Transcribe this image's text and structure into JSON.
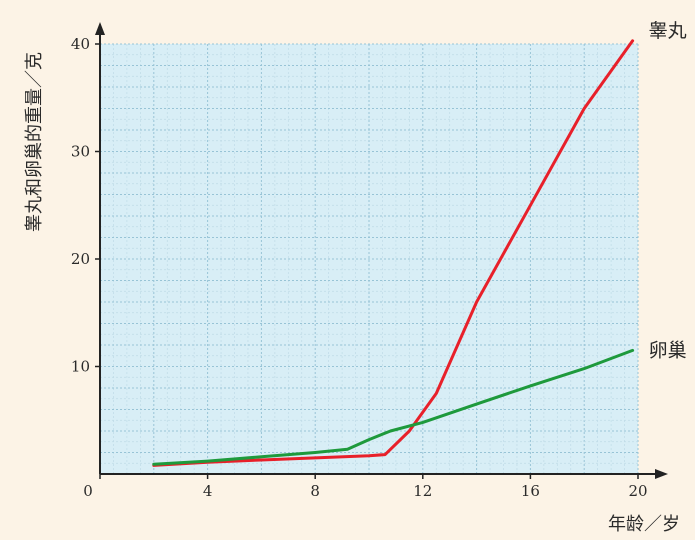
{
  "chart_data": {
    "type": "line",
    "xlabel": "年龄／岁",
    "ylabel": "睾丸和卵巢的重量／克",
    "xlim": [
      0,
      20
    ],
    "ylim": [
      0,
      40
    ],
    "x_ticks": [
      {
        "value": 0,
        "label": "0"
      },
      {
        "value": 4,
        "label": "4"
      },
      {
        "value": 8,
        "label": "8"
      },
      {
        "value": 12,
        "label": "12"
      },
      {
        "value": 16,
        "label": "16"
      },
      {
        "value": 20,
        "label": "20"
      }
    ],
    "y_ticks": [
      {
        "value": 10,
        "label": "10"
      },
      {
        "value": 20,
        "label": "20"
      },
      {
        "value": 30,
        "label": "30"
      },
      {
        "value": 40,
        "label": "40"
      }
    ],
    "grid": true,
    "plot_background": "#d8eef6",
    "series": [
      {
        "name": "睾丸",
        "color": "#e8202a",
        "x": [
          2,
          4,
          6,
          8,
          10,
          10.6,
          11.5,
          12.5,
          14,
          16,
          18,
          19.8
        ],
        "y": [
          0.8,
          1.1,
          1.3,
          1.5,
          1.7,
          1.8,
          4,
          7.5,
          16,
          25,
          34,
          40.3
        ]
      },
      {
        "name": "卵巢",
        "color": "#1e9a3c",
        "x": [
          2,
          4,
          6,
          8,
          9.2,
          10,
          10.8,
          12,
          14,
          16,
          18,
          19.8
        ],
        "y": [
          0.9,
          1.2,
          1.6,
          2.0,
          2.3,
          3.2,
          4.0,
          4.8,
          6.5,
          8.2,
          9.8,
          11.5
        ]
      }
    ]
  }
}
